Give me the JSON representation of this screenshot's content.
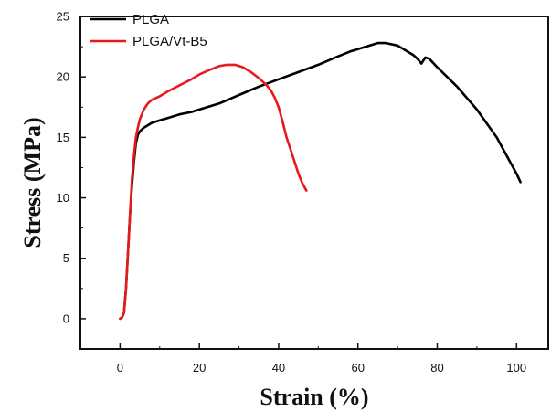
{
  "chart_data": {
    "type": "line",
    "title": "",
    "xlabel": "Strain (%)",
    "ylabel": "Stress (MPa)",
    "xlim": [
      -10,
      108
    ],
    "ylim": [
      -2.5,
      25
    ],
    "xticks": [
      0,
      20,
      40,
      60,
      80,
      100
    ],
    "yticks": [
      0,
      5,
      10,
      15,
      20,
      25
    ],
    "grid": false,
    "legend_position": "top-left",
    "series": [
      {
        "name": "PLGA",
        "color": "#000000",
        "x": [
          0,
          0.5,
          1,
          1.5,
          2,
          2.5,
          3,
          3.5,
          4,
          4.5,
          5,
          6,
          7,
          8,
          10,
          12,
          15,
          18,
          20,
          25,
          30,
          35,
          40,
          45,
          50,
          55,
          58,
          60,
          62,
          65,
          67,
          70,
          72,
          74,
          75,
          76,
          77,
          78,
          80,
          85,
          90,
          95,
          98,
          100,
          101
        ],
        "y": [
          0,
          0.1,
          0.5,
          2.5,
          5.5,
          8.5,
          11,
          13,
          14.5,
          15.2,
          15.5,
          15.8,
          16,
          16.2,
          16.4,
          16.6,
          16.9,
          17.1,
          17.3,
          17.8,
          18.5,
          19.2,
          19.8,
          20.4,
          21,
          21.7,
          22.1,
          22.3,
          22.5,
          22.8,
          22.8,
          22.6,
          22.2,
          21.8,
          21.5,
          21.1,
          21.6,
          21.5,
          20.8,
          19.2,
          17.3,
          15,
          13.2,
          12,
          11.3
        ]
      },
      {
        "name": "PLGA/Vt-B5",
        "color": "#e8191c",
        "x": [
          0,
          0.5,
          1,
          1.5,
          2,
          2.5,
          3,
          3.5,
          4,
          4.5,
          5,
          6,
          7,
          8,
          10,
          12,
          15,
          18,
          20,
          22,
          25,
          27,
          29,
          31,
          33,
          35,
          37,
          38,
          39,
          40,
          41,
          42,
          43,
          44,
          45,
          46,
          47
        ],
        "y": [
          0,
          0.1,
          0.5,
          2.5,
          5.5,
          8.5,
          11.5,
          13.5,
          15,
          15.8,
          16.5,
          17.3,
          17.8,
          18.1,
          18.4,
          18.8,
          19.3,
          19.8,
          20.2,
          20.5,
          20.9,
          21,
          21,
          20.8,
          20.4,
          19.9,
          19.3,
          18.9,
          18.3,
          17.5,
          16.3,
          15,
          14,
          13,
          12,
          11.2,
          10.6
        ]
      }
    ]
  }
}
